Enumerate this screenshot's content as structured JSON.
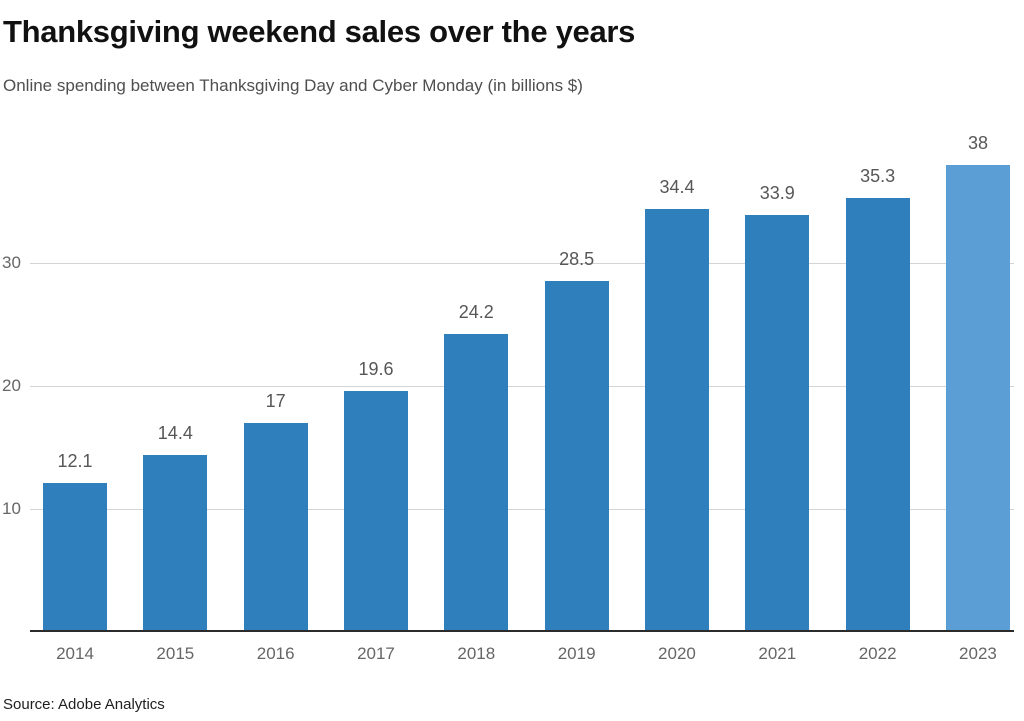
{
  "header": {
    "title": "Thanksgiving weekend sales over the years",
    "subtitle": "Online spending between Thanksgiving Day and Cyber Monday (in billions $)"
  },
  "footer": {
    "source": "Source: Adobe Analytics"
  },
  "colors": {
    "bar": "#2f7fbc",
    "bar_highlight": "#5b9ed6",
    "gridline": "#d4d4d4",
    "axis": "#2b2b2b",
    "label": "#575757",
    "tick": "#666666"
  },
  "chart_data": {
    "type": "bar",
    "title": "Thanksgiving weekend sales over the years",
    "subtitle": "Online spending between Thanksgiving Day and Cyber Monday (in billions $)",
    "source": "Source: Adobe Analytics",
    "categories": [
      "2014",
      "2015",
      "2016",
      "2017",
      "2018",
      "2019",
      "2020",
      "2021",
      "2022",
      "2023"
    ],
    "values": [
      12.1,
      14.4,
      17,
      19.6,
      24.2,
      28.5,
      34.4,
      33.9,
      35.3,
      38
    ],
    "value_labels": [
      "12.1",
      "14.4",
      "17",
      "19.6",
      "24.2",
      "28.5",
      "34.4",
      "33.9",
      "35.3",
      "38"
    ],
    "highlight_index": 9,
    "xlabel": "",
    "ylabel": "",
    "yticks": [
      10,
      20,
      30
    ],
    "ylim": [
      0,
      40
    ],
    "grid": "horizontal",
    "legend": "none"
  }
}
